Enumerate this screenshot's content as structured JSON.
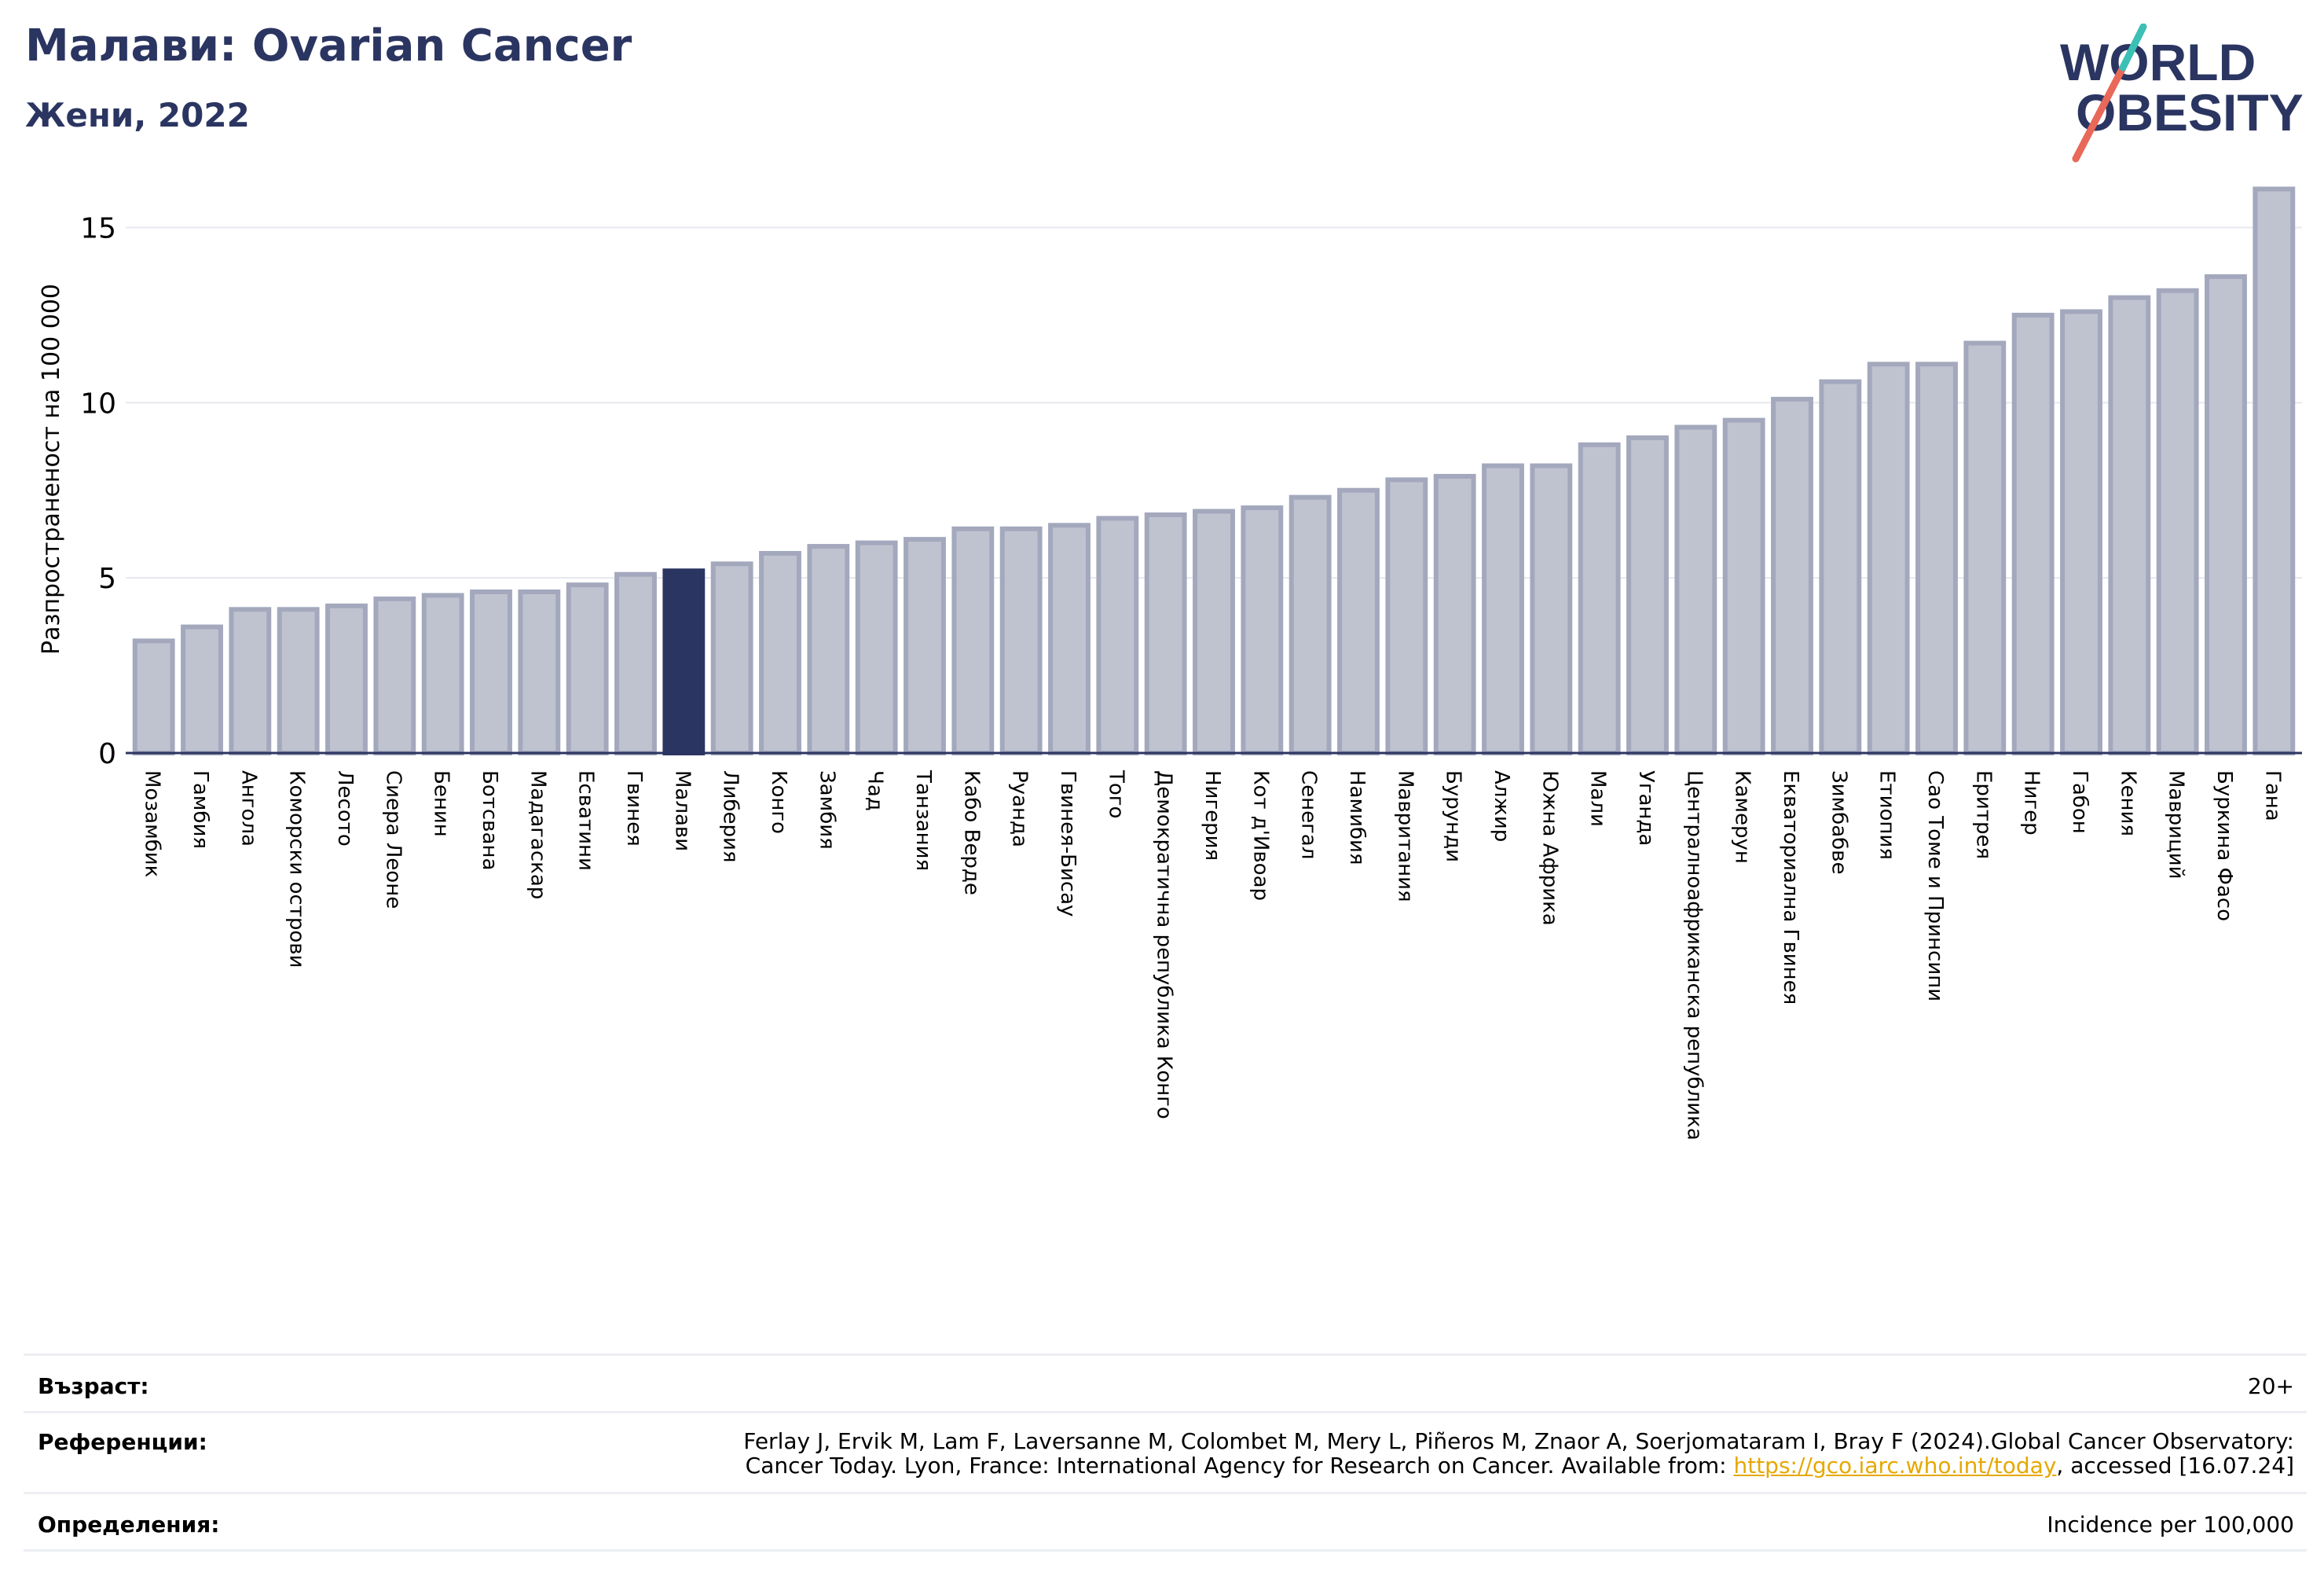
{
  "title": "Малави: Ovarian Cancer",
  "subtitle": "Жени, 2022",
  "logo": {
    "line1": "WORLD",
    "line2": "OBESITY",
    "text_color": "#2b3561",
    "slash_colors": [
      "#e8685a",
      "#3cbfb4"
    ]
  },
  "colors": {
    "bar_default": "#bfc3d0",
    "bar_edge": "#a3a8bd",
    "bar_highlight": "#2b3561",
    "grid": "#e6e8ee",
    "axis": "#2b3561"
  },
  "chart_data": {
    "type": "bar",
    "ylabel": "Разпространеност  на 100 000",
    "ylim": [
      0,
      16.2
    ],
    "yticks": [
      0,
      5,
      10,
      15
    ],
    "grid": true,
    "highlight": "Малави",
    "categories": [
      "Мозамбик",
      "Гамбия",
      "Ангола",
      "Коморски острови",
      "Лесото",
      "Сиера Леоне",
      "Бенин",
      "Ботсвана",
      "Мадагаскар",
      "Есватини",
      "Гвинея",
      "Малави",
      "Либерия",
      "Конго",
      "Замбия",
      "Чад",
      "Танзания",
      "Кабо Верде",
      "Руанда",
      "Гвинея-Бисау",
      "Того",
      "Демократична република Конго",
      "Нигерия",
      "Кот д'Ивоар",
      "Сенегал",
      "Намибия",
      "Мавритания",
      "Бурунди",
      "Алжир",
      "Южна Африка",
      "Мали",
      "Уганда",
      "Централноафриканска република",
      "Камерун",
      "Екваториална Гвинея",
      "Зимбабве",
      "Етиопия",
      "Сао Томе и Принсипи",
      "Еритрея",
      "Нигер",
      "Габон",
      "Кения",
      "Мавриций",
      "Буркина Фасо",
      "Гана"
    ],
    "values": [
      3.2,
      3.6,
      4.1,
      4.1,
      4.2,
      4.4,
      4.5,
      4.6,
      4.6,
      4.8,
      5.1,
      5.2,
      5.4,
      5.7,
      5.9,
      6.0,
      6.1,
      6.4,
      6.4,
      6.5,
      6.7,
      6.8,
      6.9,
      7.0,
      7.3,
      7.5,
      7.8,
      7.9,
      8.2,
      8.2,
      8.8,
      9.0,
      9.3,
      9.5,
      10.1,
      10.6,
      11.1,
      11.1,
      11.7,
      12.5,
      12.6,
      13.0,
      13.2,
      13.6,
      16.1
    ]
  },
  "footer": {
    "age_label": "Възраст:",
    "age_value": "20+",
    "refs_label": "Референции:",
    "refs_line1": "Ferlay J, Ervik M, Lam F, Laversanne M, Colombet M, Mery L, Piñeros M, Znaor A, Soerjomataram I, Bray F (2024).Global Cancer Observatory:",
    "refs_line2_pre": "Cancer Today. Lyon, France: International Agency for Research on Cancer. Available from: ",
    "refs_link": "https://gco.iarc.who.int/today",
    "refs_line2_post": ", accessed [16.07.24]",
    "defs_label": "Определения:",
    "defs_value": "Incidence per 100,000"
  }
}
